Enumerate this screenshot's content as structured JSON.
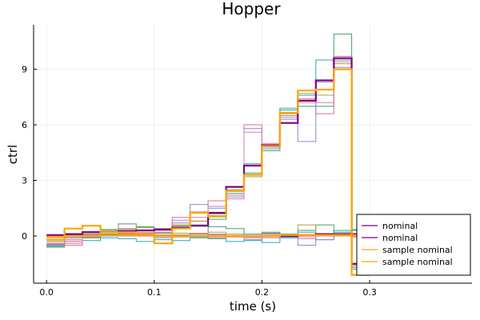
{
  "chart_data": {
    "type": "line",
    "step": true,
    "title": "Hopper",
    "xlabel": "time (s)",
    "ylabel": "ctrl",
    "xlim": [
      -0.012,
      0.395
    ],
    "ylim": [
      -2.55,
      11.4
    ],
    "x_ticks": [
      0.0,
      0.1,
      0.2,
      0.3
    ],
    "x_tick_labels": [
      "0.0",
      "0.1",
      "0.2",
      "0.3"
    ],
    "y_ticks": [
      0,
      3,
      6,
      9
    ],
    "y_tick_labels": [
      "0",
      "3",
      "6",
      "9"
    ],
    "grid": true,
    "legend_position": "bottom-right",
    "legend": [
      {
        "label": "nominal",
        "color": "#800080"
      },
      {
        "label": "nominal",
        "color": "#800080"
      },
      {
        "label": "sample nominal",
        "color": "#FFA500"
      },
      {
        "label": "sample nominal",
        "color": "#FFA500"
      }
    ],
    "step_edges": [
      0.0,
      0.0167,
      0.0333,
      0.05,
      0.0667,
      0.0833,
      0.1,
      0.1167,
      0.1333,
      0.15,
      0.1667,
      0.1833,
      0.2,
      0.2167,
      0.2333,
      0.25,
      0.2667,
      0.2833
    ],
    "series": [
      {
        "color": "#800080",
        "width": 2.2,
        "values": [
          0.05,
          0.1,
          0.2,
          0.2,
          0.25,
          0.3,
          0.35,
          0.45,
          0.55,
          1.25,
          2.65,
          3.8,
          4.9,
          6.1,
          7.3,
          8.4,
          9.6,
          -1.5
        ]
      },
      {
        "color": "#800080",
        "width": 2.2,
        "values": [
          -0.05,
          0.0,
          0.0,
          0.05,
          0.05,
          0.05,
          0.0,
          0.0,
          0.0,
          0.0,
          0.0,
          0.0,
          0.0,
          0.0,
          0.05,
          0.1,
          0.1,
          0.1
        ]
      },
      {
        "color": "#FFA500",
        "width": 2.2,
        "values": [
          -0.2,
          0.4,
          0.55,
          0.2,
          0.2,
          0.1,
          -0.4,
          0.4,
          1.25,
          1.05,
          2.45,
          3.3,
          4.85,
          6.65,
          7.85,
          7.9,
          9.0,
          -2.1
        ]
      },
      {
        "color": "#FFA500",
        "width": 2.2,
        "values": [
          -0.05,
          0.0,
          0.0,
          0.05,
          0.05,
          0.05,
          0.0,
          0.0,
          0.0,
          0.0,
          0.0,
          0.0,
          0.0,
          0.05,
          0.05,
          0.05,
          0.05,
          0.05
        ]
      },
      {
        "color": "#3DA36A",
        "width": 1,
        "values": [
          -0.6,
          0.05,
          0.1,
          0.35,
          0.65,
          0.5,
          0.4,
          0.55,
          0.8,
          1.2,
          2.5,
          3.9,
          4.6,
          6.9,
          7.0,
          7.0,
          10.9,
          -1.8
        ]
      },
      {
        "color": "#3DA36A",
        "width": 1,
        "values": [
          -0.6,
          -0.1,
          0.0,
          0.3,
          0.2,
          0.1,
          0.15,
          0.05,
          0.1,
          0.5,
          0.4,
          0.1,
          0.2,
          0.1,
          0.3,
          0.6,
          0.2,
          0.3
        ]
      },
      {
        "color": "#E26F8A",
        "width": 1,
        "values": [
          -0.5,
          -0.5,
          0.05,
          0.3,
          0.4,
          0.3,
          0.3,
          1.0,
          1.3,
          1.9,
          2.2,
          6.0,
          4.8,
          6.5,
          7.4,
          6.6,
          9.7,
          -1.5
        ]
      },
      {
        "color": "#E26F8A",
        "width": 1,
        "values": [
          -0.5,
          -0.4,
          -0.1,
          0.1,
          0.2,
          0.0,
          0.2,
          -0.05,
          0.0,
          -0.1,
          0.0,
          -0.1,
          0.1,
          -0.05,
          -0.15,
          0.05,
          0.0,
          -0.05
        ]
      },
      {
        "color": "#25A9B3",
        "width": 1,
        "values": [
          -0.55,
          0.0,
          -0.1,
          0.1,
          0.3,
          0.1,
          0.35,
          0.4,
          0.6,
          0.9,
          2.3,
          3.4,
          4.8,
          6.8,
          7.6,
          9.5,
          9.5,
          -1.7
        ]
      },
      {
        "color": "#25A9B3",
        "width": 1,
        "values": [
          -0.45,
          -0.2,
          -0.25,
          -0.1,
          -0.15,
          -0.3,
          -0.2,
          -0.25,
          -0.1,
          -0.15,
          -0.3,
          -0.25,
          -0.35,
          -0.1,
          0.2,
          -0.2,
          0.3,
          0.35
        ]
      },
      {
        "color": "#8F86D6",
        "width": 1,
        "values": [
          -0.45,
          -0.3,
          0.25,
          0.05,
          0.2,
          0.15,
          0.3,
          0.7,
          1.7,
          1.5,
          2.1,
          5.8,
          4.7,
          6.3,
          5.1,
          8.3,
          9.1,
          -1.7
        ]
      },
      {
        "color": "#8F86D6",
        "width": 1,
        "values": [
          -0.45,
          -0.1,
          0.0,
          0.0,
          0.1,
          0.05,
          -0.1,
          0.0,
          -0.05,
          0.1,
          0.0,
          -0.2,
          0.15,
          -0.05,
          -0.5,
          -0.2,
          0.1,
          0.05
        ]
      },
      {
        "color": "#B0A040",
        "width": 1,
        "values": [
          -0.3,
          0.1,
          0.2,
          0.3,
          0.25,
          0.45,
          0.3,
          0.6,
          0.8,
          1.1,
          2.4,
          3.2,
          4.9,
          6.6,
          7.7,
          7.6,
          9.3,
          -1.6
        ]
      },
      {
        "color": "#B0A040",
        "width": 1,
        "values": [
          -0.3,
          0.1,
          0.1,
          0.2,
          0.15,
          0.1,
          0.05,
          0.15,
          0.1,
          0.2,
          0.1,
          0.0,
          0.1,
          0.0,
          0.6,
          0.1,
          0.0,
          0.1
        ]
      },
      {
        "color": "#D47FB0",
        "width": 1,
        "values": [
          -0.4,
          -0.2,
          0.05,
          0.25,
          0.35,
          0.2,
          0.4,
          0.85,
          1.0,
          1.6,
          2.0,
          5.6,
          5.0,
          6.4,
          7.2,
          7.2,
          9.4,
          -1.55
        ]
      },
      {
        "color": "#D47FB0",
        "width": 1,
        "values": [
          -0.4,
          -0.3,
          -0.05,
          0.05,
          0.0,
          0.1,
          0.05,
          0.0,
          0.15,
          0.05,
          -0.05,
          -0.1,
          -0.1,
          0.05,
          -0.05,
          0.0,
          0.05,
          0.0
        ]
      }
    ]
  }
}
